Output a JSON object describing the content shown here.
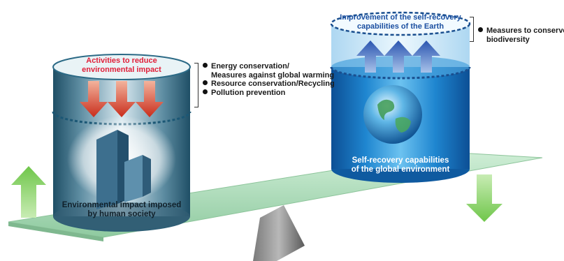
{
  "left_cylinder": {
    "top_label_line1": "Activities to reduce",
    "top_label_line2": "environmental impact",
    "bottom_label_line1": "Environmental impact imposed",
    "bottom_label_line2": "by human society"
  },
  "right_cylinder": {
    "top_label_line1": "Improvement of the self-recovery",
    "top_label_line2": "capabilities of the Earth",
    "bottom_label_line1": "Self-recovery capabilities",
    "bottom_label_line2": "of the global environment"
  },
  "left_bullets": [
    {
      "line1": "Energy conservation/",
      "line2": "Measures against global warming"
    },
    {
      "line1": "Resource conservation/Recycling"
    },
    {
      "line1": "Pollution prevention"
    }
  ],
  "right_bullets": [
    {
      "line1": "Measures to conserve",
      "line2": "biodiversity"
    }
  ],
  "colors": {
    "red_text": "#e0203a",
    "arrow_red": "#d9402a",
    "arrow_blue": "#3a62b8",
    "arrow_green": "#8ed46a",
    "plank": "#b9e3c4",
    "cylinder_blue": "#1d7fc4"
  }
}
